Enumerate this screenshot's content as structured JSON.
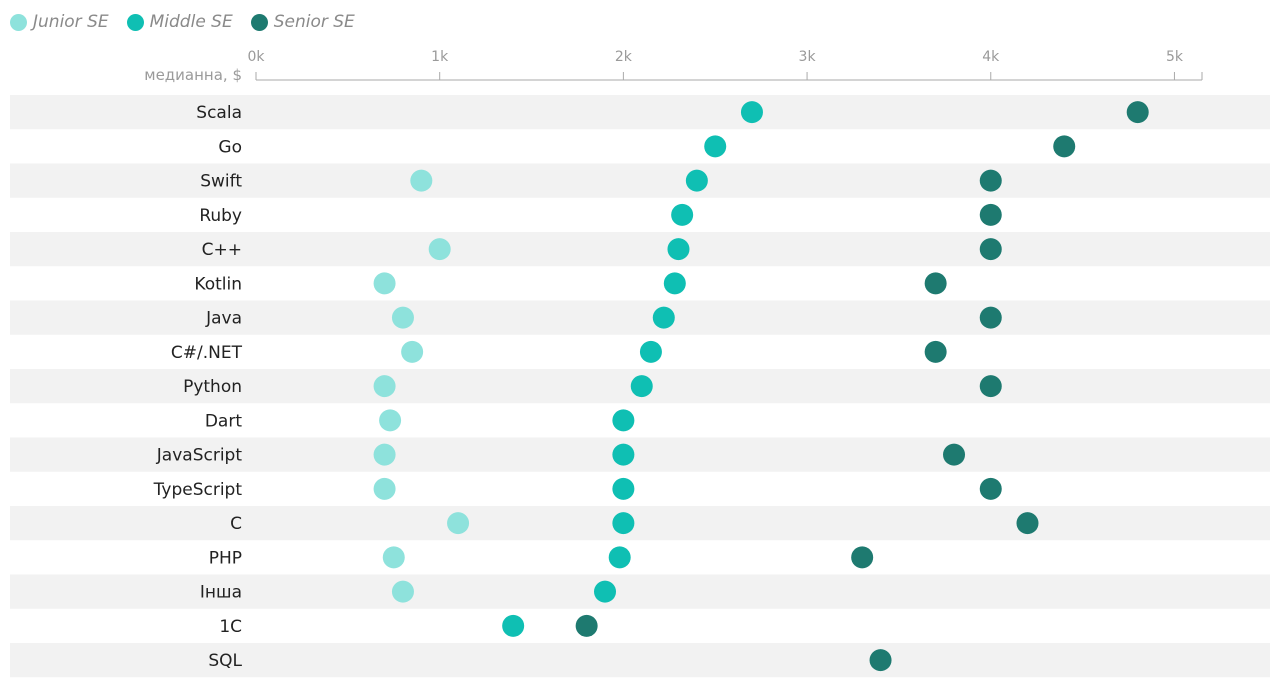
{
  "legend": [
    {
      "name": "Junior SE",
      "color": "#8ee2dc"
    },
    {
      "name": "Middle SE",
      "color": "#0fbfb3"
    },
    {
      "name": "Senior SE",
      "color": "#1e7a70"
    }
  ],
  "chart_data": {
    "type": "scatter",
    "ylabel": "медианна, $",
    "xlim": [
      0,
      5150
    ],
    "x_ticks": [
      0,
      1000,
      2000,
      3000,
      4000,
      5000
    ],
    "x_tick_labels": [
      "0k",
      "1k",
      "2k",
      "3k",
      "4k",
      "5k"
    ],
    "grid": false,
    "legend_position": "top-left",
    "categories": [
      "Scala",
      "Go",
      "Swift",
      "Ruby",
      "C++",
      "Kotlin",
      "Java",
      "C#/.NET",
      "Python",
      "Dart",
      "JavaScript",
      "TypeScript",
      "C",
      "PHP",
      "Інша",
      "1С",
      "SQL"
    ],
    "series": [
      {
        "name": "Junior SE",
        "color": "#8ee2dc",
        "values": [
          null,
          null,
          900,
          null,
          1000,
          700,
          800,
          850,
          700,
          730,
          700,
          700,
          1100,
          750,
          800,
          null,
          null
        ]
      },
      {
        "name": "Middle SE",
        "color": "#0fbfb3",
        "values": [
          2700,
          2500,
          2400,
          2320,
          2300,
          2280,
          2220,
          2150,
          2100,
          2000,
          2000,
          2000,
          2000,
          1980,
          1900,
          1400,
          null
        ]
      },
      {
        "name": "Senior SE",
        "color": "#1e7a70",
        "values": [
          4800,
          4400,
          4000,
          4000,
          4000,
          3700,
          4000,
          3700,
          4000,
          null,
          3800,
          4000,
          4200,
          3300,
          null,
          1800,
          3400
        ]
      }
    ]
  }
}
